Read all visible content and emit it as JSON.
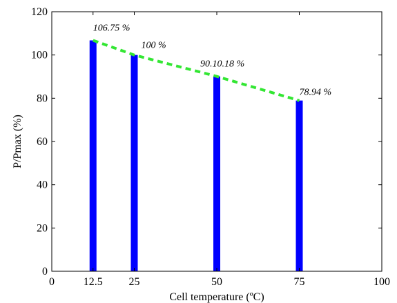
{
  "chart_data": {
    "type": "bar",
    "xlabel": "Cell temperature (ºC)",
    "ylabel": "P/Pmax (%)",
    "xlim": [
      0,
      100
    ],
    "ylim": [
      0,
      120
    ],
    "x_ticks": [
      0,
      12.5,
      25,
      50,
      75,
      100
    ],
    "x_tick_labels": [
      "0",
      "12.5",
      "25",
      "50",
      "75",
      "100"
    ],
    "y_ticks": [
      0,
      20,
      40,
      60,
      80,
      100,
      120
    ],
    "y_tick_labels": [
      "0",
      "20",
      "40",
      "60",
      "80",
      "100",
      "120"
    ],
    "x": [
      12.5,
      25,
      50,
      75
    ],
    "values": [
      106.75,
      100,
      90.1,
      78.94
    ],
    "data_labels": [
      "106.75 %",
      "100 %",
      "90.10.18 %",
      "78.94 %"
    ],
    "trend_line": {
      "style": "dashed",
      "color": "#33e633",
      "x": [
        12.5,
        25,
        50,
        75
      ],
      "y": [
        106.75,
        100,
        90.1,
        78.94
      ]
    },
    "bar_color": "#0000ff",
    "grid": false,
    "legend": false
  }
}
